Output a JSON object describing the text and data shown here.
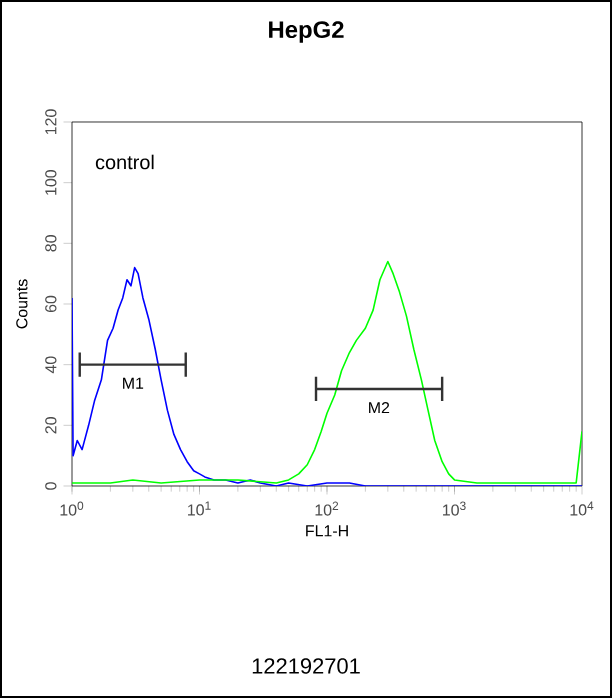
{
  "chart_data": {
    "type": "line",
    "title": "HepG2",
    "xlabel": "FL1-H",
    "ylabel": "Counts",
    "log": "x",
    "xlim": [
      1,
      10000
    ],
    "ylim": [
      0,
      120
    ],
    "xticks": [
      {
        "value": 1,
        "label": "10$^{0}$"
      },
      {
        "value": 10,
        "label": "10$^{1}$"
      },
      {
        "value": 100,
        "label": "10$^{2}$"
      },
      {
        "value": 1000,
        "label": "10$^{3}$"
      },
      {
        "value": 10000,
        "label": "10$^{4}$"
      }
    ],
    "yticks": [
      0,
      20,
      40,
      60,
      80,
      100,
      120
    ],
    "series": [
      {
        "color": "#0000ff",
        "x": [
          1,
          1.02,
          1.1,
          1.2,
          1.35,
          1.5,
          1.7,
          1.9,
          2.1,
          2.3,
          2.5,
          2.7,
          2.9,
          3.1,
          3.3,
          3.6,
          4,
          4.5,
          5,
          5.6,
          6.3,
          7.1,
          8,
          9,
          10,
          11,
          13,
          16,
          20,
          25,
          30,
          40,
          50,
          70,
          100,
          150,
          200,
          500,
          1000,
          3000,
          10000
        ],
        "values": [
          62,
          10,
          15,
          12,
          20,
          28,
          35,
          48,
          52,
          58,
          62,
          68,
          66,
          72,
          70,
          62,
          55,
          45,
          35,
          25,
          17,
          12,
          8,
          5,
          4,
          3,
          2,
          2,
          1,
          2,
          1,
          0,
          1,
          0,
          1,
          1,
          0,
          0,
          0,
          0,
          0
        ]
      },
      {
        "color": "#00ff00",
        "x": [
          1,
          2,
          3,
          5,
          10,
          20,
          40,
          50,
          60,
          70,
          80,
          90,
          100,
          115,
          130,
          150,
          170,
          200,
          230,
          260,
          300,
          330,
          370,
          420,
          480,
          550,
          620,
          700,
          800,
          900,
          1000,
          1500,
          2000,
          5000,
          9000,
          10000
        ],
        "values": [
          1,
          1,
          2,
          1,
          2,
          2,
          1,
          2,
          4,
          7,
          12,
          18,
          24,
          30,
          38,
          44,
          48,
          52,
          58,
          68,
          74,
          70,
          64,
          56,
          45,
          35,
          25,
          15,
          8,
          4,
          2,
          1,
          1,
          1,
          1,
          18
        ]
      },
      {
        "color": "#333333",
        "x": [
          1.15,
          1.15,
          1.15,
          7.8,
          7.8,
          7.8
        ],
        "values": [
          44,
          36,
          40,
          40,
          44,
          36
        ]
      },
      {
        "color": "#333333",
        "x": [
          82,
          82,
          82,
          800,
          800,
          800
        ],
        "values": [
          36,
          28,
          32,
          32,
          36,
          28
        ]
      }
    ],
    "annotations": [
      "control",
      {
        "text": "M1",
        "x": 3,
        "y": 40
      },
      {
        "text": "M2",
        "x": 255,
        "y": 32
      },
      "122192701"
    ]
  }
}
